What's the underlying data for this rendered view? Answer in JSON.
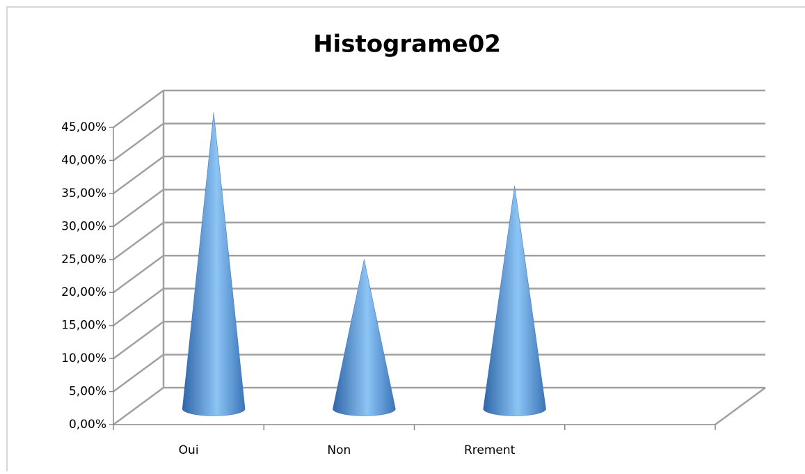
{
  "chart_data": {
    "type": "cone",
    "title": "Histograme02",
    "categories": [
      "Oui",
      "Non",
      "Rrement",
      null
    ],
    "values": [
      44.44,
      22.22,
      33.33,
      null
    ],
    "color": "#4f8fd8",
    "ylim": [
      0,
      45
    ],
    "yticks": [
      {
        "value": 0,
        "label": "0,00%"
      },
      {
        "value": 5,
        "label": "5,00%"
      },
      {
        "value": 10,
        "label": "10,00%"
      },
      {
        "value": 15,
        "label": "15,00%"
      },
      {
        "value": 20,
        "label": "20,00%"
      },
      {
        "value": 25,
        "label": "25,00%"
      },
      {
        "value": 30,
        "label": "30,00%"
      },
      {
        "value": 35,
        "label": "35,00%"
      },
      {
        "value": 40,
        "label": "40,00%"
      },
      {
        "value": 45,
        "label": "45,00%"
      }
    ],
    "grid": true
  }
}
